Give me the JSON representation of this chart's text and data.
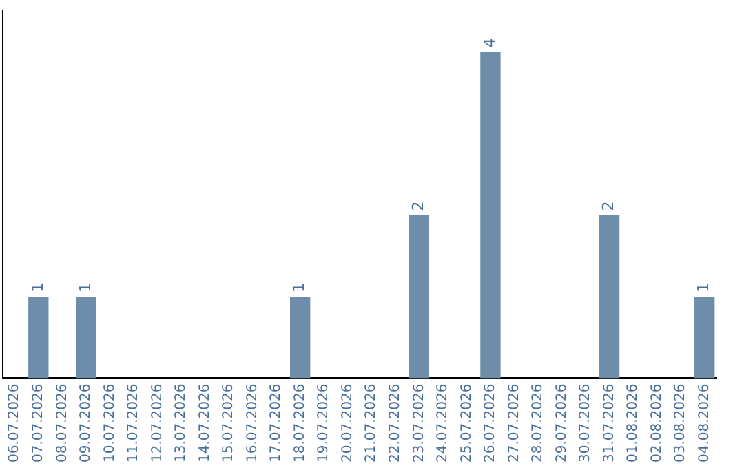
{
  "chart_data": {
    "type": "bar",
    "categories": [
      "06.07.2026",
      "07.07.2026",
      "08.07.2026",
      "09.07.2026",
      "10.07.2026",
      "11.07.2026",
      "12.07.2026",
      "13.07.2026",
      "14.07.2026",
      "15.07.2026",
      "16.07.2026",
      "17.07.2026",
      "18.07.2026",
      "19.07.2026",
      "20.07.2026",
      "21.07.2026",
      "22.07.2026",
      "23.07.2026",
      "24.07.2026",
      "25.07.2026",
      "26.07.2026",
      "27.07.2026",
      "28.07.2026",
      "29.07.2026",
      "30.07.2026",
      "31.07.2026",
      "01.08.2026",
      "02.08.2026",
      "03.08.2026",
      "04.08.2026"
    ],
    "values": [
      0,
      1,
      0,
      1,
      0,
      0,
      0,
      0,
      0,
      0,
      0,
      0,
      1,
      0,
      0,
      0,
      0,
      2,
      0,
      0,
      4,
      0,
      0,
      0,
      0,
      2,
      0,
      0,
      0,
      1
    ],
    "value_labels": [
      null,
      "1",
      null,
      "1",
      null,
      null,
      null,
      null,
      null,
      null,
      null,
      null,
      "1",
      null,
      null,
      null,
      null,
      "2",
      null,
      null,
      "4",
      null,
      null,
      null,
      null,
      "2",
      null,
      null,
      null,
      "1"
    ],
    "color": "#6e8daa",
    "grid": false,
    "legend": false,
    "tick_labels": "x"
  }
}
